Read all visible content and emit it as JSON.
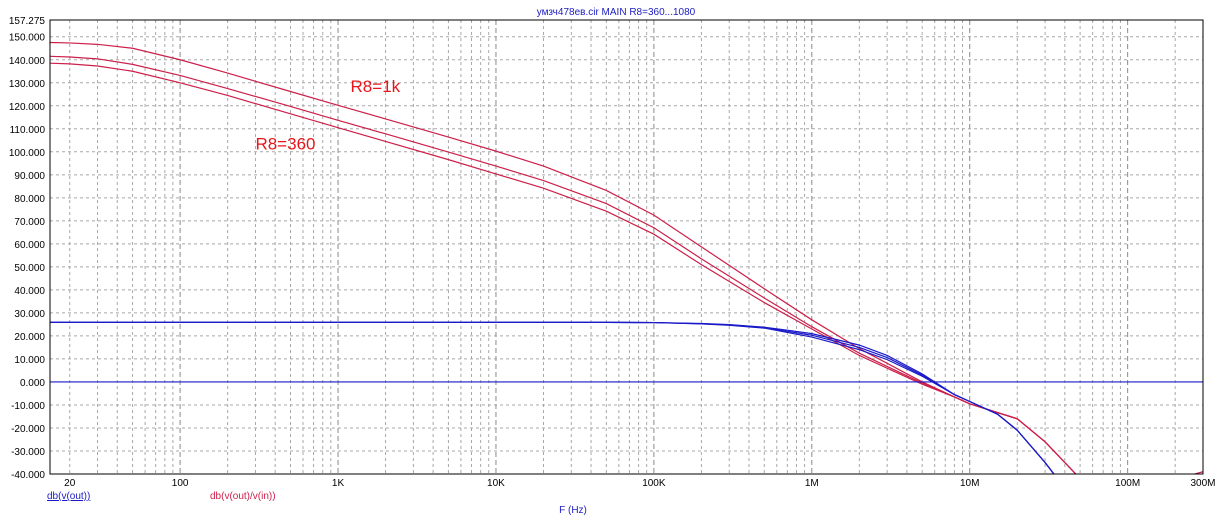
{
  "chart_data": {
    "type": "line",
    "title": "умзч478ев.cir MAIN R8=360...1080",
    "xlabel": "F (Hz)",
    "x_scale": "log",
    "xlim": [
      15,
      300000000
    ],
    "ylim": [
      -40,
      157.275
    ],
    "y_ticks": [
      "157.275",
      "150.000",
      "140.000",
      "130.000",
      "120.000",
      "110.000",
      "100.000",
      "90.000",
      "80.000",
      "70.000",
      "60.000",
      "50.000",
      "40.000",
      "30.000",
      "20.000",
      "10.000",
      "0.000",
      "-10.000",
      "-20.000",
      "-30.000",
      "-40.000"
    ],
    "x_ticks": [
      {
        "value": 20,
        "label": "20"
      },
      {
        "value": 100,
        "label": "100"
      },
      {
        "value": 1000,
        "label": "1K"
      },
      {
        "value": 10000,
        "label": "10K"
      },
      {
        "value": 100000,
        "label": "100K"
      },
      {
        "value": 1000000,
        "label": "1M"
      },
      {
        "value": 10000000,
        "label": "10M"
      },
      {
        "value": 100000000,
        "label": "100M"
      },
      {
        "value": 300000000,
        "label": "300M"
      }
    ],
    "legend": [
      {
        "label": "db(v(out))",
        "color": "#1a1ac8"
      },
      {
        "label": "db(v(out)/v(in))",
        "color": "#cc1f4a"
      }
    ],
    "annotations": [
      {
        "text": "R8=1k",
        "x": 1200,
        "y": 126,
        "color": "#e8161b"
      },
      {
        "text": "R8=360",
        "x": 300,
        "y": 101,
        "color": "#e8161b"
      }
    ],
    "series": [
      {
        "color": "#cc1f4a",
        "x": [
          15,
          20,
          30,
          50,
          100,
          200,
          500,
          1000,
          2000,
          5000,
          10000,
          20000,
          50000,
          100000,
          200000,
          500000,
          1000000,
          2000000,
          5000000,
          8000000,
          10000000,
          20000000,
          30000000,
          40000000,
          50000000
        ],
        "values": [
          147.5,
          147.3,
          146.7,
          145.0,
          140.0,
          134.2,
          126.2,
          120.2,
          114.3,
          106.4,
          100.3,
          93.8,
          83.2,
          72.5,
          58.7,
          40.5,
          27.0,
          14.5,
          0.0,
          -6.5,
          -9.5,
          -16.0,
          -26.0,
          -35.0,
          -42.0
        ]
      },
      {
        "color": "#cc1f4a",
        "x": [
          15,
          20,
          30,
          50,
          100,
          200,
          500,
          1000,
          2000,
          5000,
          10000,
          20000,
          50000,
          100000,
          200000,
          500000,
          1000000,
          2000000,
          5000000,
          8000000,
          10000000,
          20000000,
          30000000,
          40000000,
          50000000
        ],
        "values": [
          141.5,
          141.2,
          140.4,
          138.0,
          133.2,
          127.5,
          119.7,
          113.7,
          107.8,
          99.9,
          93.8,
          87.5,
          77.5,
          67.0,
          53.5,
          36.5,
          24.0,
          12.5,
          -0.5,
          -6.5,
          -9.5,
          -16.0,
          -26.0,
          -35.0,
          -42.0
        ]
      },
      {
        "color": "#cc1f4a",
        "x": [
          15,
          20,
          30,
          50,
          100,
          200,
          500,
          1000,
          2000,
          5000,
          10000,
          20000,
          50000,
          100000,
          200000,
          500000,
          1000000,
          2000000,
          5000000,
          8000000,
          10000000,
          20000000,
          30000000,
          40000000,
          50000000
        ],
        "values": [
          138.5,
          138.2,
          137.3,
          135.0,
          130.0,
          124.5,
          116.5,
          110.5,
          104.5,
          96.6,
          90.4,
          84.2,
          74.2,
          64.2,
          51.0,
          34.5,
          23.0,
          11.5,
          -1.0,
          -6.5,
          -9.5,
          -16.0,
          -26.0,
          -35.0,
          -42.0
        ]
      },
      {
        "color": "#1a1ac8",
        "x": [
          15,
          1000,
          50000,
          100000,
          200000,
          300000,
          500000,
          700000,
          1000000,
          2000000,
          3000000,
          5000000,
          8000000,
          10000000,
          15000000,
          20000000,
          30000000,
          35000000,
          40000000
        ],
        "values": [
          25.9,
          25.9,
          25.9,
          25.8,
          25.4,
          24.9,
          23.8,
          22.5,
          21.0,
          16.0,
          11.5,
          3.5,
          -5.5,
          -8.5,
          -14.0,
          -21.0,
          -35.0,
          -41.0,
          -48.0
        ]
      },
      {
        "color": "#1a1ac8",
        "x": [
          15,
          1000,
          50000,
          100000,
          200000,
          300000,
          500000,
          700000,
          1000000,
          2000000,
          3000000,
          5000000,
          8000000,
          10000000,
          15000000,
          20000000,
          30000000,
          35000000,
          40000000
        ],
        "values": [
          25.9,
          25.9,
          25.9,
          25.8,
          25.3,
          24.8,
          23.6,
          22.0,
          20.3,
          15.0,
          10.6,
          3.0,
          -5.5,
          -8.5,
          -14.0,
          -21.0,
          -35.0,
          -41.0,
          -48.0
        ]
      },
      {
        "color": "#1a1ac8",
        "x": [
          15,
          1000,
          50000,
          100000,
          200000,
          300000,
          500000,
          700000,
          1000000,
          2000000,
          3000000,
          5000000,
          8000000,
          10000000,
          15000000,
          20000000,
          30000000,
          35000000,
          40000000
        ],
        "values": [
          25.9,
          25.9,
          25.9,
          25.8,
          25.2,
          24.6,
          23.4,
          21.5,
          19.5,
          14.0,
          9.7,
          2.5,
          -5.5,
          -8.5,
          -14.0,
          -21.0,
          -35.0,
          -41.0,
          -48.0
        ]
      },
      {
        "color": "#1a1ac8",
        "x": [
          15,
          300000000
        ],
        "values": [
          0,
          0
        ]
      },
      {
        "color": "#cc1f4a",
        "x": [
          250000000,
          300000000
        ],
        "values": [
          -40.5,
          -39.0
        ]
      }
    ]
  }
}
